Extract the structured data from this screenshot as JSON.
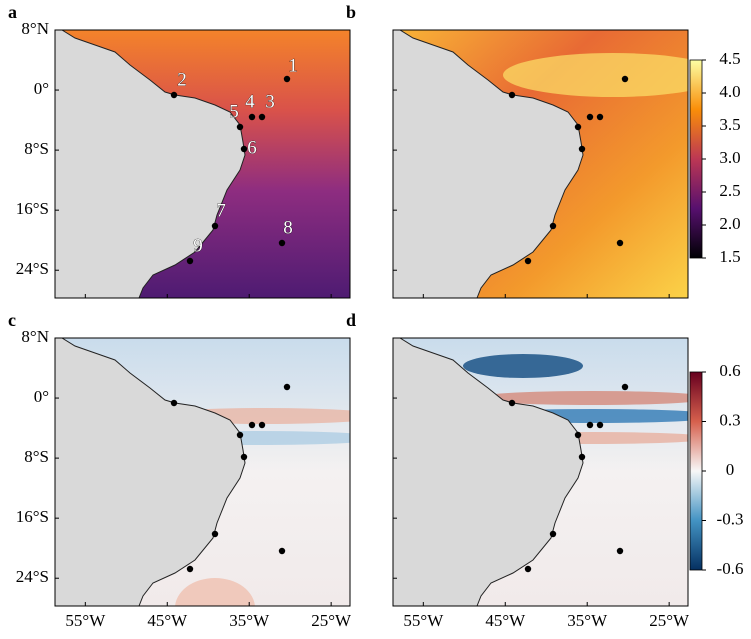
{
  "panels": [
    {
      "label": "a"
    },
    {
      "label": "b"
    },
    {
      "label": "c"
    },
    {
      "label": "d"
    }
  ],
  "map": {
    "xlim": [
      -58.7,
      -22.7
    ],
    "ylim": [
      -27.7,
      8
    ],
    "xticks": [
      {
        "value": -55,
        "label": "55°W"
      },
      {
        "value": -45,
        "label": "45°W"
      },
      {
        "value": -35,
        "label": "35°W"
      },
      {
        "value": -25,
        "label": "25°W"
      }
    ],
    "yticks": [
      {
        "value": 8,
        "label": "8°N"
      },
      {
        "value": 0,
        "label": "0°"
      },
      {
        "value": -8,
        "label": "8°S"
      },
      {
        "value": -16,
        "label": "16°S"
      },
      {
        "value": -24,
        "label": "24°S"
      }
    ]
  },
  "stations": [
    "1",
    "2",
    "3",
    "4",
    "5",
    "6",
    "7",
    "8",
    "9"
  ],
  "colorbars": [
    {
      "lim": [
        1.5,
        4.5
      ],
      "ticks": [
        4.5,
        {
          "value": 4,
          "label": "4.0"
        },
        3.5,
        {
          "value": 3,
          "label": "3.0"
        },
        2.5,
        {
          "value": 2,
          "label": "2.0"
        },
        1.5
      ]
    },
    {
      "lim": [
        -0.6,
        0.6
      ],
      "ticks": [
        0.6,
        0.3,
        0,
        -0.3,
        -0.6
      ]
    }
  ]
}
